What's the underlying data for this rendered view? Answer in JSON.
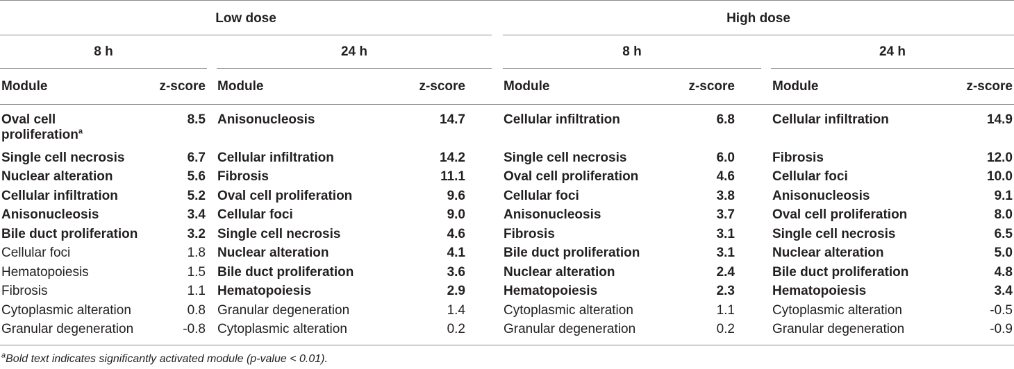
{
  "headers": {
    "low_dose": "Low dose",
    "high_dose": "High dose",
    "time_8h": "8 h",
    "time_24h": "24 h",
    "module": "Module",
    "zscore": "z-score"
  },
  "groups": [
    {
      "dose": "Low dose",
      "time": "8 h",
      "rows": [
        {
          "module": "Oval cell",
          "module_line2": "proliferation",
          "sup": "a",
          "z": "8.5",
          "bold": true
        },
        {
          "module": "Single cell necrosis",
          "z": "6.7",
          "bold": true
        },
        {
          "module": "Nuclear alteration",
          "z": "5.6",
          "bold": true
        },
        {
          "module": "Cellular infiltration",
          "z": "5.2",
          "bold": true
        },
        {
          "module": "Anisonucleosis",
          "z": "3.4",
          "bold": true
        },
        {
          "module": "Bile duct proliferation",
          "z": "3.2",
          "bold": true
        },
        {
          "module": "Cellular foci",
          "z": "1.8",
          "bold": false
        },
        {
          "module": "Hematopoiesis",
          "z": "1.5",
          "bold": false
        },
        {
          "module": "Fibrosis",
          "z": "1.1",
          "bold": false
        },
        {
          "module": "Cytoplasmic alteration",
          "z": "0.8",
          "bold": false
        },
        {
          "module": "Granular degeneration",
          "z": "-0.8",
          "bold": false
        }
      ]
    },
    {
      "dose": "Low dose",
      "time": "24 h",
      "rows": [
        {
          "module": "Anisonucleosis",
          "z": "14.7",
          "bold": true
        },
        {
          "module": "Cellular infiltration",
          "z": "14.2",
          "bold": true
        },
        {
          "module": "Fibrosis",
          "z": "11.1",
          "bold": true
        },
        {
          "module": "Oval cell proliferation",
          "z": "9.6",
          "bold": true
        },
        {
          "module": "Cellular foci",
          "z": "9.0",
          "bold": true
        },
        {
          "module": "Single cell necrosis",
          "z": "4.6",
          "bold": true
        },
        {
          "module": "Nuclear alteration",
          "z": "4.1",
          "bold": true
        },
        {
          "module": "Bile duct proliferation",
          "z": "3.6",
          "bold": true
        },
        {
          "module": "Hematopoiesis",
          "z": "2.9",
          "bold": true
        },
        {
          "module": "Granular degeneration",
          "z": "1.4",
          "bold": false
        },
        {
          "module": "Cytoplasmic alteration",
          "z": "0.2",
          "bold": false
        }
      ]
    },
    {
      "dose": "High dose",
      "time": "8 h",
      "rows": [
        {
          "module": "Cellular infiltration",
          "z": "6.8",
          "bold": true
        },
        {
          "module": "Single cell necrosis",
          "z": "6.0",
          "bold": true
        },
        {
          "module": "Oval cell proliferation",
          "z": "4.6",
          "bold": true
        },
        {
          "module": "Cellular foci",
          "z": "3.8",
          "bold": true
        },
        {
          "module": "Anisonucleosis",
          "z": "3.7",
          "bold": true
        },
        {
          "module": "Fibrosis",
          "z": "3.1",
          "bold": true
        },
        {
          "module": "Bile duct proliferation",
          "z": "3.1",
          "bold": true
        },
        {
          "module": "Nuclear alteration",
          "z": "2.4",
          "bold": true
        },
        {
          "module": "Hematopoiesis",
          "z": "2.3",
          "bold": true
        },
        {
          "module": "Cytoplasmic alteration",
          "z": "1.1",
          "bold": false
        },
        {
          "module": "Granular degeneration",
          "z": "0.2",
          "bold": false
        }
      ]
    },
    {
      "dose": "High dose",
      "time": "24 h",
      "rows": [
        {
          "module": "Cellular infiltration",
          "z": "14.9",
          "bold": true
        },
        {
          "module": "Fibrosis",
          "z": "12.0",
          "bold": true
        },
        {
          "module": "Cellular foci",
          "z": "10.0",
          "bold": true
        },
        {
          "module": "Anisonucleosis",
          "z": "9.1",
          "bold": true
        },
        {
          "module": "Oval cell proliferation",
          "z": "8.0",
          "bold": true
        },
        {
          "module": "Single cell necrosis",
          "z": "6.5",
          "bold": true
        },
        {
          "module": "Nuclear alteration",
          "z": "5.0",
          "bold": true
        },
        {
          "module": "Bile duct proliferation",
          "z": "4.8",
          "bold": true
        },
        {
          "module": "Hematopoiesis",
          "z": "3.4",
          "bold": true
        },
        {
          "module": "Cytoplasmic alteration",
          "z": "-0.5",
          "bold": false
        },
        {
          "module": "Granular degeneration",
          "z": "-0.9",
          "bold": false
        }
      ]
    }
  ],
  "footnote": {
    "sup": "a",
    "text": "Bold text indicates significantly activated module (p-value < 0.01)."
  }
}
